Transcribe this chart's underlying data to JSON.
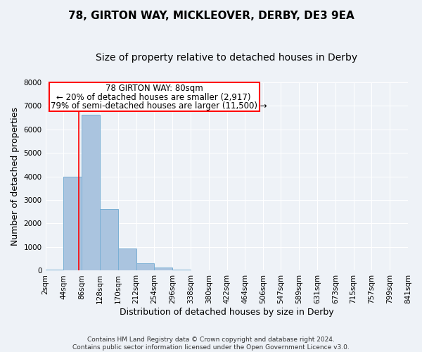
{
  "title": "78, GIRTON WAY, MICKLEOVER, DERBY, DE3 9EA",
  "subtitle": "Size of property relative to detached houses in Derby",
  "xlabel": "Distribution of detached houses by size in Derby",
  "ylabel": "Number of detached properties",
  "footer_lines": [
    "Contains HM Land Registry data © Crown copyright and database right 2024.",
    "Contains public sector information licensed under the Open Government Licence v3.0."
  ],
  "bin_edges": [
    2,
    44,
    86,
    128,
    170,
    212,
    254,
    296,
    338,
    380,
    422,
    464,
    506,
    547,
    589,
    631,
    673,
    715,
    757,
    799,
    841
  ],
  "bar_values": [
    50,
    4000,
    6600,
    2600,
    950,
    325,
    120,
    50,
    0,
    0,
    0,
    0,
    0,
    0,
    0,
    0,
    0,
    0,
    0,
    0
  ],
  "tick_labels": [
    "2sqm",
    "44sqm",
    "86sqm",
    "128sqm",
    "170sqm",
    "212sqm",
    "254sqm",
    "296sqm",
    "338sqm",
    "380sqm",
    "422sqm",
    "464sqm",
    "506sqm",
    "547sqm",
    "589sqm",
    "631sqm",
    "673sqm",
    "715sqm",
    "757sqm",
    "799sqm",
    "841sqm"
  ],
  "ylim": [
    0,
    8000
  ],
  "yticks": [
    0,
    1000,
    2000,
    3000,
    4000,
    5000,
    6000,
    7000,
    8000
  ],
  "bar_color": "#aac4df",
  "bar_edge_color": "#7aafd4",
  "red_line_x": 80,
  "annotation_line1": "78 GIRTON WAY: 80sqm",
  "annotation_line2": "← 20% of detached houses are smaller (2,917)",
  "annotation_line3": "79% of semi-detached houses are larger (11,500) →",
  "background_color": "#eef2f7",
  "plot_bg_color": "#eef2f7",
  "grid_color": "#ffffff",
  "title_fontsize": 11,
  "subtitle_fontsize": 10,
  "axis_label_fontsize": 9,
  "tick_fontsize": 7.5,
  "annotation_fontsize": 8.5
}
